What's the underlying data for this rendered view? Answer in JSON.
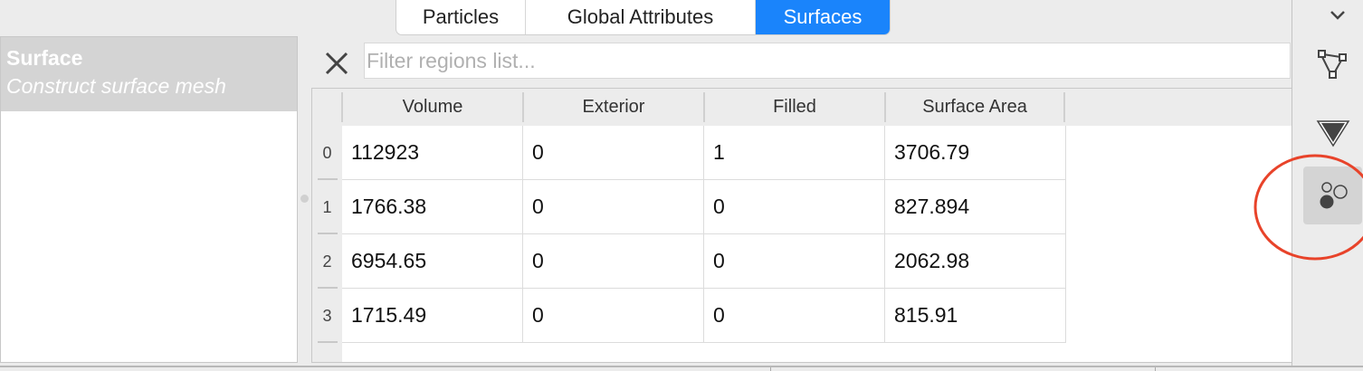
{
  "tabs": [
    {
      "label": "Particles"
    },
    {
      "label": "Global Attributes"
    },
    {
      "label": "Surfaces",
      "selected": true
    }
  ],
  "pipeline": {
    "title": "Surface",
    "subtitle": "Construct surface mesh"
  },
  "filter": {
    "placeholder": "Filter regions list...",
    "value": ""
  },
  "table": {
    "columns": [
      "Volume",
      "Exterior",
      "Filled",
      "Surface Area"
    ],
    "rows": [
      {
        "index": "0",
        "cells": [
          "112923",
          "0",
          "1",
          "3706.79"
        ]
      },
      {
        "index": "1",
        "cells": [
          "1766.38",
          "0",
          "0",
          "827.894"
        ]
      },
      {
        "index": "2",
        "cells": [
          "6954.65",
          "0",
          "0",
          "2062.98"
        ]
      },
      {
        "index": "3",
        "cells": [
          "1715.49",
          "0",
          "0",
          "815.91"
        ]
      }
    ]
  },
  "toolbar": {
    "icons": [
      "chevron-down-icon",
      "mesh-triangle-icon",
      "filled-triangle-icon",
      "particles-circles-icon"
    ],
    "selected": "particles-circles-icon"
  },
  "colors": {
    "accent": "#1a84fb",
    "highlight_circle": "#e8432a"
  }
}
